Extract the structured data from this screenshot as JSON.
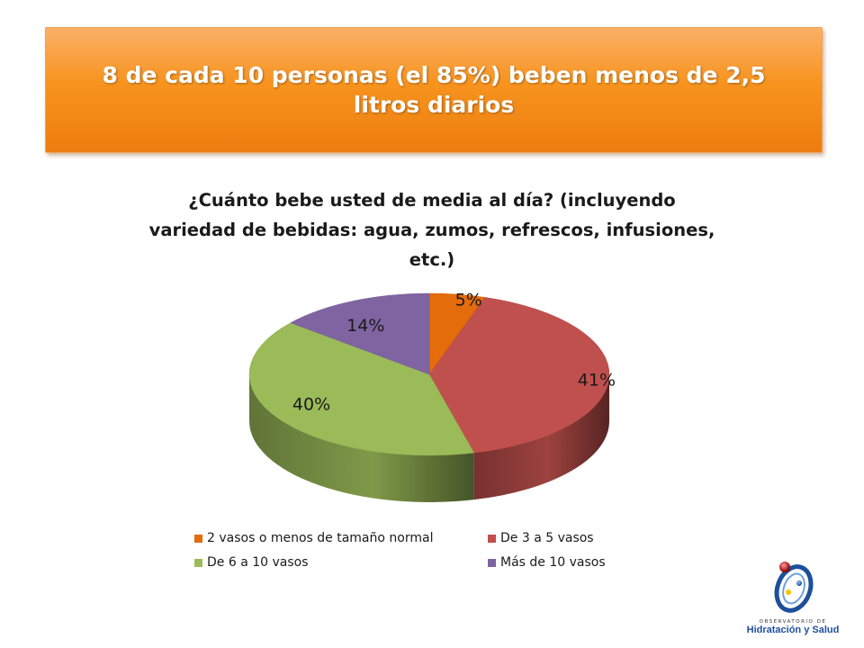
{
  "banner": {
    "title": "8 de cada 10 personas (el 85%) beben menos de 2,5 litros diarios"
  },
  "chart_data": {
    "type": "pie",
    "title": "¿Cuánto bebe usted de media al día? (incluyendo variedad de bebidas: agua, zumos, refrescos, infusiones, etc.)",
    "labels": [
      "2 vasos o menos de tamaño normal",
      "De 3 a 5 vasos",
      "De 6 a 10 vasos",
      "Más de 10 vasos"
    ],
    "values": [
      5,
      41,
      40,
      14
    ],
    "data_labels": [
      "5%",
      "41%",
      "40%",
      "14%"
    ],
    "colors": [
      "#e46c0a",
      "#c0504d",
      "#9bbb59",
      "#8064a2"
    ],
    "style": "3d",
    "legend_position": "bottom"
  },
  "logo": {
    "caption": "OBSERVATORIO DE",
    "name": "Hidratación y Salud"
  }
}
